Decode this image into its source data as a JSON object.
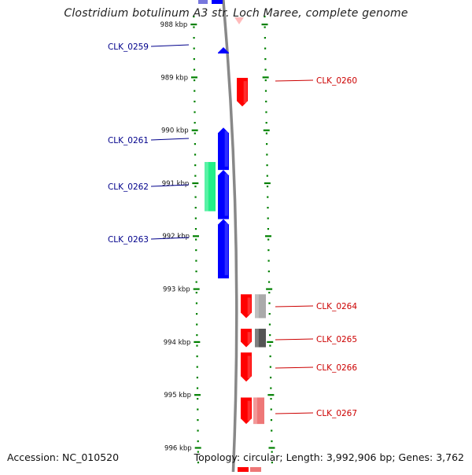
{
  "title": "Clostridium botulinum A3 str. Loch Maree, complete genome",
  "footer": {
    "accession": "Accession: NC_010520",
    "summary": "Topology: circular; Length: 3,992,906 bp; Genes: 3,762"
  },
  "ticks": [
    "988 kbp",
    "989 kbp",
    "990 kbp",
    "991 kbp",
    "992 kbp",
    "993 kbp",
    "994 kbp",
    "995 kbp",
    "996 kbp"
  ],
  "genes": [
    {
      "id": "CLK_0259",
      "strand": "minus",
      "color": "#0000ff",
      "label_color": "#00008b",
      "start_kbp": 988.43,
      "end_kbp": 988.55
    },
    {
      "id": "CLK_0260",
      "strand": "plus",
      "color": "#ff0000",
      "label_color": "#cc0000",
      "start_kbp": 989.01,
      "end_kbp": 989.55
    },
    {
      "id": "CLK_0261",
      "strand": "minus",
      "color": "#0000ff",
      "label_color": "#00008b",
      "start_kbp": 989.95,
      "end_kbp": 990.75
    },
    {
      "id": "CLK_0262",
      "strand": "minus",
      "color": "#0000ff",
      "label_color": "#00008b",
      "start_kbp": 990.75,
      "end_kbp": 991.68
    },
    {
      "id": "CLK_0263",
      "strand": "minus",
      "color": "#0000ff",
      "label_color": "#00008b",
      "start_kbp": 991.68,
      "end_kbp": 992.8
    },
    {
      "id": "CLK_0264",
      "strand": "plus",
      "color": "#ff0000",
      "label_color": "#cc0000",
      "start_kbp": 993.1,
      "end_kbp": 993.55
    },
    {
      "id": "CLK_0265",
      "strand": "plus",
      "color": "#ff0000",
      "label_color": "#cc0000",
      "start_kbp": 993.75,
      "end_kbp": 994.1
    },
    {
      "id": "CLK_0266",
      "strand": "plus",
      "color": "#ff0000",
      "label_color": "#cc0000",
      "start_kbp": 994.2,
      "end_kbp": 994.75
    },
    {
      "id": "CLK_0267",
      "strand": "plus",
      "color": "#ff0000",
      "label_color": "#cc0000",
      "start_kbp": 995.05,
      "end_kbp": 995.55
    }
  ],
  "features": [
    {
      "kind": "rna",
      "color": "#22ee88",
      "start_kbp": 990.6,
      "end_kbp": 991.53
    },
    {
      "kind": "orthologue",
      "color": "#aaaaaa",
      "start_kbp": 993.1,
      "end_kbp": 993.55
    },
    {
      "kind": "orthologue",
      "color": "#555555",
      "start_kbp": 993.75,
      "end_kbp": 994.1
    },
    {
      "kind": "orthologue",
      "color": "#ee7777",
      "start_kbp": 995.05,
      "end_kbp": 995.55
    }
  ],
  "colors": {
    "backbone": "#888888",
    "tick": "#008000",
    "minus_gene": "#0000ff",
    "plus_gene": "#ff0000"
  }
}
